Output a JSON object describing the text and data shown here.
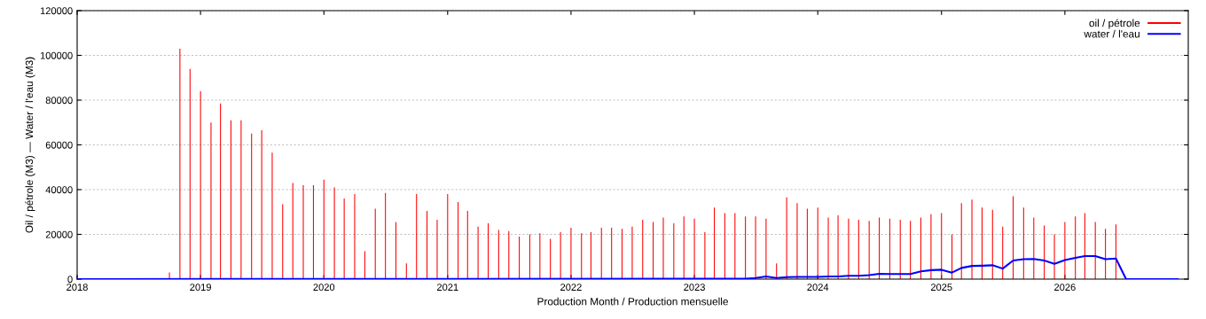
{
  "chart_data": {
    "type": "bar",
    "xlabel": "Production Month / Production mensuelle",
    "ylabel": "Oil / pétrole (M3) — Water / l'eau (M3)",
    "xlim": [
      "2018-01",
      "2027-01"
    ],
    "xticks": [
      {
        "value": "2018",
        "label": "2018"
      },
      {
        "value": "2019",
        "label": "2019"
      },
      {
        "value": "2020",
        "label": "2020"
      },
      {
        "value": "2021",
        "label": "2021"
      },
      {
        "value": "2022",
        "label": "2022"
      },
      {
        "value": "2023",
        "label": "2023"
      },
      {
        "value": "2024",
        "label": "2024"
      },
      {
        "value": "2025",
        "label": "2025"
      },
      {
        "value": "2026",
        "label": "2026"
      }
    ],
    "ylim": [
      0,
      120000
    ],
    "yticks": [
      0,
      20000,
      40000,
      60000,
      80000,
      100000,
      120000
    ],
    "grid": "y",
    "legend": "top right",
    "series": [
      {
        "name": "oil / pétrole",
        "color": "#ff0000",
        "x": [
          "2018-10",
          "2018-11",
          "2018-12",
          "2019-01",
          "2019-02",
          "2019-03",
          "2019-04",
          "2019-05",
          "2019-06",
          "2019-07",
          "2019-08",
          "2019-09",
          "2019-10",
          "2019-11",
          "2019-12",
          "2020-01",
          "2020-02",
          "2020-03",
          "2020-04",
          "2020-05",
          "2020-06",
          "2020-07",
          "2020-08",
          "2020-09",
          "2020-10",
          "2020-11",
          "2020-12",
          "2021-01",
          "2021-02",
          "2021-03",
          "2021-04",
          "2021-05",
          "2021-06",
          "2021-07",
          "2021-08",
          "2021-09",
          "2021-10",
          "2021-11",
          "2021-12",
          "2022-01",
          "2022-02",
          "2022-03",
          "2022-04",
          "2022-05",
          "2022-06",
          "2022-07",
          "2022-08",
          "2022-09",
          "2022-10",
          "2022-11",
          "2022-12",
          "2023-01",
          "2023-02",
          "2023-03",
          "2023-04",
          "2023-05",
          "2023-06",
          "2023-07",
          "2023-08",
          "2023-09",
          "2023-10",
          "2023-11",
          "2023-12",
          "2024-01",
          "2024-02",
          "2024-03",
          "2024-04",
          "2024-05",
          "2024-06",
          "2024-07",
          "2024-08",
          "2024-09",
          "2024-10",
          "2024-11",
          "2024-12",
          "2025-01",
          "2025-02",
          "2025-03",
          "2025-04",
          "2025-05",
          "2025-06",
          "2025-07",
          "2025-08",
          "2025-09",
          "2025-10",
          "2025-11",
          "2025-12",
          "2026-01",
          "2026-02",
          "2026-03",
          "2026-04",
          "2026-05",
          "2026-06"
        ],
        "values": [
          3000,
          103000,
          94000,
          84000,
          70000,
          78500,
          71000,
          71000,
          65000,
          66500,
          56500,
          33500,
          43000,
          42000,
          42000,
          44500,
          41000,
          36000,
          38000,
          12500,
          31500,
          38500,
          25500,
          7000,
          38000,
          30500,
          26500,
          38000,
          34500,
          30500,
          23500,
          25000,
          22000,
          21500,
          19000,
          20000,
          20500,
          18000,
          21000,
          23000,
          20500,
          21000,
          23000,
          23000,
          22500,
          23500,
          26500,
          25500,
          27500,
          25000,
          28000,
          27000,
          21000,
          32000,
          29500,
          29500,
          28000,
          28000,
          27000,
          7000,
          36500,
          34000,
          31500,
          32000,
          27500,
          28500,
          27000,
          26500,
          26000,
          27500,
          27000,
          26500,
          26000,
          27500,
          29000,
          29500,
          20000,
          34000,
          35500,
          32000,
          31000,
          23500,
          37000,
          32000,
          27500,
          24000,
          20000,
          25500,
          28000,
          29500,
          25500,
          22500,
          24500
        ]
      },
      {
        "name": "water / l'eau",
        "type": "line",
        "color": "#0000ff",
        "x": [
          "2018-01",
          "2022-12",
          "2023-01",
          "2023-06",
          "2023-07",
          "2023-08",
          "2023-09",
          "2023-10",
          "2023-11",
          "2023-12",
          "2024-01",
          "2024-02",
          "2024-03",
          "2024-04",
          "2024-05",
          "2024-06",
          "2024-07",
          "2024-08",
          "2024-09",
          "2024-10",
          "2024-11",
          "2024-12",
          "2025-01",
          "2025-02",
          "2025-03",
          "2025-04",
          "2025-05",
          "2025-06",
          "2025-07",
          "2025-08",
          "2025-09",
          "2025-10",
          "2025-11",
          "2025-12",
          "2026-01",
          "2026-02",
          "2026-03",
          "2026-04",
          "2026-05",
          "2026-06",
          "2026-07",
          "2026-12"
        ],
        "values": [
          0,
          200,
          200,
          200,
          500,
          1200,
          500,
          900,
          1000,
          1000,
          1000,
          1200,
          1200,
          1500,
          1500,
          1800,
          2400,
          2300,
          2300,
          2300,
          3500,
          4000,
          4200,
          2900,
          5000,
          5900,
          6000,
          6200,
          4700,
          8300,
          8900,
          9000,
          8300,
          6800,
          8500,
          9500,
          10300,
          10300,
          8900,
          9200,
          0,
          0
        ]
      }
    ]
  }
}
